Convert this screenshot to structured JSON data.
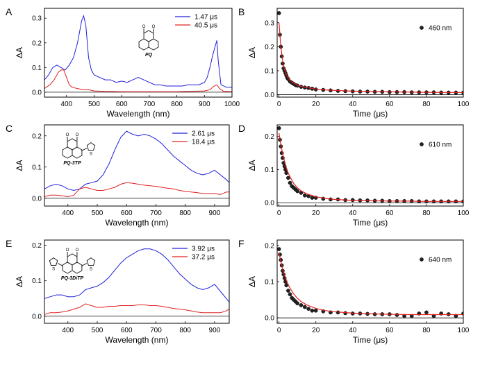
{
  "chart_data": [
    {
      "panel": "A",
      "type": "line",
      "xlabel": "Wavelength  (nm)",
      "ylabel": "ΔA",
      "xlim": [
        320,
        1000
      ],
      "ylim": [
        -0.02,
        0.34
      ],
      "xticks": [
        400,
        500,
        600,
        700,
        800,
        900,
        1000
      ],
      "yticks": [
        0.0,
        0.1,
        0.2,
        0.3
      ],
      "ytick_labels": [
        "0.0",
        "0.1",
        "0.2",
        "0.3"
      ],
      "baseline": 0,
      "legend_position": "top-right",
      "molecule_label": "PQ",
      "molecule_type": "PQ",
      "series": [
        {
          "name": "1.47 μs",
          "color": "#1f1fdc",
          "x": [
            320,
            335,
            350,
            365,
            380,
            395,
            410,
            425,
            440,
            455,
            462,
            470,
            480,
            490,
            500,
            520,
            540,
            560,
            580,
            600,
            620,
            640,
            660,
            680,
            700,
            720,
            740,
            760,
            780,
            800,
            820,
            840,
            860,
            880,
            900,
            910,
            920,
            930,
            940,
            945,
            950,
            960,
            980,
            1000
          ],
          "y": [
            0.05,
            0.07,
            0.1,
            0.11,
            0.1,
            0.09,
            0.11,
            0.14,
            0.2,
            0.29,
            0.31,
            0.27,
            0.14,
            0.09,
            0.07,
            0.06,
            0.05,
            0.05,
            0.04,
            0.045,
            0.04,
            0.05,
            0.06,
            0.05,
            0.04,
            0.03,
            0.03,
            0.025,
            0.025,
            0.025,
            0.025,
            0.03,
            0.03,
            0.03,
            0.04,
            0.06,
            0.1,
            0.15,
            0.19,
            0.21,
            0.13,
            0.03,
            0.02,
            0.02
          ]
        },
        {
          "name": "40.5 μs",
          "color": "#e02020",
          "x": [
            320,
            340,
            355,
            370,
            380,
            390,
            400,
            410,
            420,
            440,
            460,
            480,
            500,
            540,
            600,
            700,
            800,
            900,
            920,
            935,
            945,
            955,
            970,
            1000
          ],
          "y": [
            0.015,
            0.03,
            0.05,
            0.08,
            0.09,
            0.09,
            0.06,
            0.03,
            0.02,
            0.015,
            0.01,
            0.01,
            0.005,
            0.003,
            0.002,
            0.002,
            0.002,
            0.005,
            0.01,
            0.025,
            0.03,
            0.015,
            0.003,
            0.002
          ]
        }
      ]
    },
    {
      "panel": "B",
      "type": "scatter",
      "xlabel": "Time  (μs)",
      "ylabel": "ΔA",
      "xlim": [
        -1,
        100
      ],
      "ylim": [
        -0.01,
        0.36
      ],
      "xticks": [
        0,
        20,
        40,
        60,
        80,
        100
      ],
      "yticks": [
        0.0,
        0.1,
        0.2,
        0.3
      ],
      "ytick_labels": [
        "0.0",
        "0.1",
        "0.2",
        "0.3"
      ],
      "baseline": 0,
      "legend_position": "top-right",
      "series": [
        {
          "name": "460 nm",
          "color": "#222222",
          "x": [
            0,
            0.5,
            1,
            1.5,
            2,
            2.5,
            3,
            3.5,
            4,
            4.5,
            5,
            6,
            7,
            8,
            9,
            10,
            12,
            14,
            16,
            18,
            20,
            24,
            28,
            32,
            36,
            40,
            44,
            48,
            52,
            56,
            60,
            64,
            68,
            72,
            76,
            80,
            84,
            88,
            92,
            96,
            100
          ],
          "y": [
            0.34,
            0.25,
            0.2,
            0.16,
            0.13,
            0.11,
            0.1,
            0.09,
            0.08,
            0.07,
            0.065,
            0.055,
            0.05,
            0.045,
            0.04,
            0.038,
            0.033,
            0.03,
            0.028,
            0.025,
            0.022,
            0.02,
            0.018,
            0.016,
            0.015,
            0.014,
            0.013,
            0.013,
            0.012,
            0.012,
            0.011,
            0.011,
            0.011,
            0.01,
            0.01,
            0.01,
            0.01,
            0.009,
            0.009,
            0.009,
            0.009
          ]
        }
      ],
      "fit": {
        "color": "#e02020",
        "x": [
          0,
          1,
          2,
          3,
          4,
          5,
          6,
          8,
          10,
          12,
          15,
          20,
          25,
          30,
          40,
          50,
          60,
          70,
          80,
          90,
          100
        ],
        "y": [
          0.3,
          0.2,
          0.14,
          0.105,
          0.085,
          0.07,
          0.06,
          0.048,
          0.04,
          0.035,
          0.03,
          0.024,
          0.02,
          0.018,
          0.015,
          0.013,
          0.012,
          0.011,
          0.01,
          0.0095,
          0.009
        ]
      }
    },
    {
      "panel": "C",
      "type": "line",
      "xlabel": "Wavelength  (nm)",
      "ylabel": "ΔA",
      "xlim": [
        320,
        950
      ],
      "ylim": [
        -0.025,
        0.235
      ],
      "xticks": [
        400,
        500,
        600,
        700,
        800,
        900
      ],
      "yticks": [
        0.0,
        0.1,
        0.2
      ],
      "ytick_labels": [
        "0.0",
        "0.1",
        "0.2"
      ],
      "baseline": 0,
      "legend_position": "top-right",
      "molecule_label": "PQ-3TP",
      "molecule_type": "PQ-3TP",
      "series": [
        {
          "name": "2.61 μs",
          "color": "#1f1fdc",
          "x": [
            320,
            340,
            360,
            380,
            400,
            420,
            440,
            460,
            480,
            500,
            520,
            540,
            560,
            580,
            600,
            620,
            640,
            660,
            680,
            700,
            720,
            740,
            760,
            780,
            800,
            820,
            840,
            860,
            880,
            900,
            920,
            940,
            950
          ],
          "y": [
            0.03,
            0.04,
            0.045,
            0.04,
            0.03,
            0.025,
            0.03,
            0.045,
            0.05,
            0.055,
            0.075,
            0.11,
            0.155,
            0.195,
            0.215,
            0.205,
            0.2,
            0.205,
            0.2,
            0.19,
            0.175,
            0.155,
            0.135,
            0.12,
            0.105,
            0.09,
            0.08,
            0.075,
            0.08,
            0.09,
            0.075,
            0.06,
            0.05
          ]
        },
        {
          "name": "18.4 μs",
          "color": "#e02020",
          "x": [
            320,
            340,
            360,
            380,
            400,
            420,
            440,
            460,
            480,
            500,
            520,
            540,
            560,
            580,
            600,
            620,
            640,
            660,
            680,
            700,
            720,
            740,
            760,
            780,
            800,
            820,
            840,
            860,
            880,
            900,
            920,
            940,
            950
          ],
          "y": [
            0.005,
            0.01,
            0.01,
            0.008,
            0.005,
            0.01,
            0.03,
            0.035,
            0.03,
            0.025,
            0.025,
            0.03,
            0.035,
            0.045,
            0.05,
            0.048,
            0.045,
            0.042,
            0.04,
            0.038,
            0.035,
            0.032,
            0.03,
            0.025,
            0.022,
            0.02,
            0.018,
            0.015,
            0.015,
            0.015,
            0.012,
            0.02,
            0.02
          ]
        }
      ]
    },
    {
      "panel": "D",
      "type": "scatter",
      "xlabel": "Time  (μs)",
      "ylabel": "ΔA",
      "xlim": [
        -1,
        100
      ],
      "ylim": [
        -0.01,
        0.235
      ],
      "xticks": [
        0,
        20,
        40,
        60,
        80,
        100
      ],
      "yticks": [
        0.0,
        0.1,
        0.2
      ],
      "ytick_labels": [
        "0.0",
        "0.1",
        "0.2"
      ],
      "baseline": 0,
      "legend_position": "top-right",
      "series": [
        {
          "name": "610 nm",
          "color": "#222222",
          "x": [
            0,
            0.5,
            1,
            1.5,
            2,
            2.5,
            3,
            3.5,
            4,
            5,
            6,
            7,
            8,
            9,
            10,
            12,
            14,
            16,
            18,
            20,
            24,
            28,
            32,
            36,
            40,
            44,
            48,
            52,
            56,
            60,
            64,
            68,
            72,
            76,
            80,
            84,
            88,
            92,
            96,
            100
          ],
          "y": [
            0.225,
            0.19,
            0.17,
            0.15,
            0.135,
            0.12,
            0.11,
            0.1,
            0.09,
            0.075,
            0.06,
            0.05,
            0.045,
            0.04,
            0.035,
            0.03,
            0.022,
            0.02,
            0.015,
            0.015,
            0.012,
            0.01,
            0.01,
            0.008,
            0.008,
            0.007,
            0.007,
            0.006,
            0.006,
            0.005,
            0.005,
            0.005,
            0.005,
            0.004,
            0.004,
            0.004,
            0.004,
            0.004,
            0.004,
            0.004
          ]
        }
      ],
      "fit": {
        "color": "#e02020",
        "x": [
          0,
          1,
          2,
          3,
          4,
          5,
          6,
          8,
          10,
          12,
          15,
          20,
          25,
          30,
          40,
          50,
          60,
          70,
          80,
          90,
          100
        ],
        "y": [
          0.21,
          0.175,
          0.148,
          0.125,
          0.105,
          0.09,
          0.078,
          0.058,
          0.045,
          0.036,
          0.027,
          0.018,
          0.013,
          0.01,
          0.007,
          0.006,
          0.005,
          0.005,
          0.004,
          0.004,
          0.004
        ]
      }
    },
    {
      "panel": "E",
      "type": "line",
      "xlabel": "Wavelength  (nm)",
      "ylabel": "ΔA",
      "xlim": [
        320,
        950
      ],
      "ylim": [
        -0.02,
        0.215
      ],
      "xticks": [
        400,
        500,
        600,
        700,
        800,
        900
      ],
      "yticks": [
        0.0,
        0.1,
        0.2
      ],
      "ytick_labels": [
        "0.0",
        "0.1",
        "0.2"
      ],
      "baseline": 0,
      "legend_position": "top-right",
      "molecule_label": "PQ-3DiTP",
      "molecule_type": "PQ-3DiTP",
      "series": [
        {
          "name": "3.92 μs",
          "color": "#1f1fdc",
          "x": [
            320,
            340,
            360,
            380,
            400,
            420,
            440,
            460,
            480,
            500,
            520,
            540,
            560,
            580,
            600,
            620,
            640,
            660,
            680,
            700,
            720,
            740,
            760,
            780,
            800,
            820,
            840,
            860,
            880,
            900,
            920,
            940,
            950
          ],
          "y": [
            0.05,
            0.055,
            0.06,
            0.06,
            0.055,
            0.055,
            0.06,
            0.075,
            0.08,
            0.085,
            0.095,
            0.11,
            0.13,
            0.15,
            0.165,
            0.175,
            0.185,
            0.19,
            0.19,
            0.185,
            0.175,
            0.16,
            0.14,
            0.12,
            0.105,
            0.09,
            0.08,
            0.075,
            0.08,
            0.09,
            0.07,
            0.05,
            0.04
          ]
        },
        {
          "name": "37.2 μs",
          "color": "#e02020",
          "x": [
            320,
            340,
            360,
            380,
            400,
            420,
            440,
            460,
            480,
            500,
            520,
            540,
            560,
            580,
            600,
            620,
            640,
            660,
            680,
            700,
            720,
            740,
            760,
            780,
            800,
            820,
            840,
            860,
            880,
            900,
            920,
            940,
            950
          ],
          "y": [
            0.005,
            0.01,
            0.01,
            0.012,
            0.015,
            0.02,
            0.025,
            0.035,
            0.03,
            0.025,
            0.025,
            0.028,
            0.028,
            0.03,
            0.03,
            0.03,
            0.032,
            0.032,
            0.03,
            0.03,
            0.028,
            0.025,
            0.022,
            0.02,
            0.018,
            0.015,
            0.012,
            0.01,
            0.01,
            0.01,
            0.01,
            0.015,
            0.02
          ]
        }
      ]
    },
    {
      "panel": "F",
      "type": "scatter",
      "xlabel": "Time  (μs)",
      "ylabel": "ΔA",
      "xlim": [
        -1,
        100
      ],
      "ylim": [
        -0.015,
        0.215
      ],
      "xticks": [
        0,
        20,
        40,
        60,
        80,
        100
      ],
      "yticks": [
        0.0,
        0.1,
        0.2
      ],
      "ytick_labels": [
        "0.0",
        "0.1",
        "0.2"
      ],
      "baseline": 0,
      "legend_position": "top-right",
      "series": [
        {
          "name": "640 nm",
          "color": "#222222",
          "x": [
            0,
            0.5,
            1,
            1.5,
            2,
            2.5,
            3,
            3.5,
            4,
            5,
            6,
            7,
            8,
            9,
            10,
            12,
            14,
            16,
            18,
            20,
            24,
            28,
            32,
            36,
            40,
            44,
            48,
            52,
            56,
            60,
            64,
            68,
            72,
            76,
            80,
            84,
            88,
            92,
            96,
            100
          ],
          "y": [
            0.19,
            0.175,
            0.16,
            0.145,
            0.13,
            0.12,
            0.11,
            0.1,
            0.09,
            0.075,
            0.065,
            0.055,
            0.05,
            0.045,
            0.04,
            0.035,
            0.03,
            0.025,
            0.02,
            0.02,
            0.018,
            0.015,
            0.015,
            0.013,
            0.012,
            0.012,
            0.011,
            0.01,
            0.01,
            0.01,
            0.008,
            0.005,
            0.005,
            0.012,
            0.015,
            0.005,
            0.012,
            0.01,
            0.005,
            0.012
          ]
        }
      ],
      "fit": {
        "color": "#e02020",
        "x": [
          0,
          1,
          2,
          3,
          4,
          5,
          6,
          8,
          10,
          12,
          15,
          20,
          25,
          30,
          40,
          50,
          60,
          70,
          80,
          90,
          100
        ],
        "y": [
          0.18,
          0.155,
          0.135,
          0.118,
          0.104,
          0.092,
          0.082,
          0.066,
          0.054,
          0.045,
          0.036,
          0.026,
          0.02,
          0.017,
          0.013,
          0.011,
          0.01,
          0.009,
          0.009,
          0.009,
          0.009
        ]
      }
    }
  ]
}
